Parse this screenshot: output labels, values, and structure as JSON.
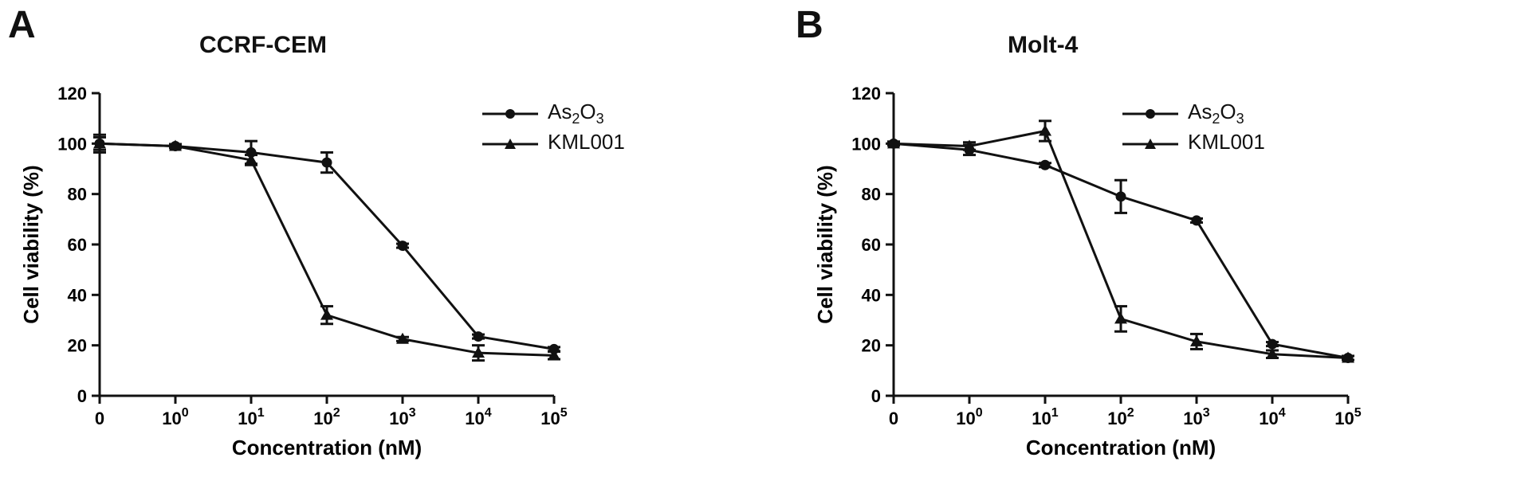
{
  "chart_data": [
    {
      "panel_letter": "A",
      "type": "line",
      "title": "CCRF-CEM",
      "xlabel": "Concentration (nM)",
      "ylabel": "Cell viability (%)",
      "x_ticks": [
        "0",
        "10",
        "10",
        "10",
        "10",
        "10",
        "10"
      ],
      "x_tick_exponents": [
        "",
        "0",
        "1",
        "2",
        "3",
        "4",
        "5"
      ],
      "y_ticks": [
        "0",
        "20",
        "40",
        "60",
        "80",
        "100",
        "120"
      ],
      "ylim": [
        0,
        120
      ],
      "x": [
        0,
        1,
        10,
        100,
        1000,
        10000,
        100000
      ],
      "grid": false,
      "legend_position": "right",
      "series": [
        {
          "name": "As2O3",
          "label_base": "As",
          "label_sub1": "2",
          "label_mid": "O",
          "label_sub2": "3",
          "marker": "circle",
          "values": [
            100,
            99,
            96.5,
            92.5,
            59.5,
            23.5,
            18.5
          ],
          "errors": [
            3.5,
            0.5,
            4.5,
            4.0,
            0.8,
            0.8,
            0.8
          ]
        },
        {
          "name": "KML001",
          "marker": "triangle",
          "values": [
            100,
            99,
            93.5,
            32,
            22.5,
            17,
            16
          ],
          "errors": [
            2.5,
            0.8,
            2.0,
            3.5,
            0.8,
            3.0,
            1.5
          ]
        }
      ]
    },
    {
      "panel_letter": "B",
      "type": "line",
      "title": "Molt-4",
      "xlabel": "Concentration (nM)",
      "ylabel": "Cell viability (%)",
      "x_ticks": [
        "0",
        "10",
        "10",
        "10",
        "10",
        "10",
        "10"
      ],
      "x_tick_exponents": [
        "",
        "0",
        "1",
        "2",
        "3",
        "4",
        "5"
      ],
      "y_ticks": [
        "0",
        "20",
        "40",
        "60",
        "80",
        "100",
        "120"
      ],
      "ylim": [
        0,
        120
      ],
      "x": [
        0,
        1,
        10,
        100,
        1000,
        10000,
        100000
      ],
      "grid": false,
      "legend_position": "right",
      "series": [
        {
          "name": "As2O3",
          "label_base": "As",
          "label_sub1": "2",
          "label_mid": "O",
          "label_sub2": "3",
          "marker": "circle",
          "values": [
            100,
            97.5,
            91.5,
            79,
            69.5,
            20.5,
            15
          ],
          "errors": [
            0.5,
            2.0,
            0.8,
            6.5,
            0.8,
            0.8,
            0.8
          ]
        },
        {
          "name": "KML001",
          "marker": "triangle",
          "values": [
            100,
            99,
            105,
            30.5,
            21.5,
            16.5,
            15
          ],
          "errors": [
            0.8,
            1.5,
            4.0,
            5.0,
            3.0,
            1.5,
            0.8
          ]
        }
      ]
    }
  ]
}
